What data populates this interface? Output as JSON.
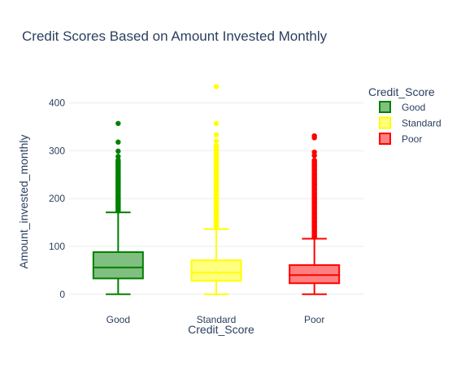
{
  "chart_data": {
    "type": "box",
    "title": "Credit Scores Based on Amount Invested Monthly",
    "xlabel": "Credit_Score",
    "ylabel": "Amount_invested_monthly",
    "ylim": [
      -14,
      445
    ],
    "yticks": [
      0,
      100,
      200,
      300,
      400
    ],
    "grid": true,
    "legend": {
      "title": "Credit_Score",
      "position": "top-right"
    },
    "categories": [
      "Good",
      "Standard",
      "Poor"
    ],
    "series": [
      {
        "name": "Good",
        "color": "#008000",
        "fill": "#80bf80",
        "min": 0,
        "q1": 33,
        "median": 56,
        "q3": 88,
        "upper_fence": 171,
        "outliers": [
          357,
          318,
          299,
          288,
          280,
          272,
          265,
          258,
          252,
          246,
          240,
          234,
          228,
          222,
          216,
          210,
          204,
          198,
          192,
          186,
          180,
          175
        ]
      },
      {
        "name": "Standard",
        "color": "#ffff00",
        "fill": "#ffff80",
        "min": 0,
        "q1": 28,
        "median": 45,
        "q3": 71,
        "upper_fence": 136,
        "outliers": [
          434,
          357,
          333,
          320,
          310,
          300,
          290,
          280,
          270,
          260,
          250,
          240,
          230,
          220,
          210,
          200,
          190,
          180,
          170,
          160,
          150,
          140
        ]
      },
      {
        "name": "Poor",
        "color": "#ff0000",
        "fill": "#ff8080",
        "min": 0,
        "q1": 23,
        "median": 40,
        "q3": 61,
        "upper_fence": 116,
        "outliers": [
          331,
          327,
          297,
          290,
          280,
          270,
          260,
          250,
          240,
          230,
          220,
          210,
          200,
          190,
          180,
          170,
          160,
          150,
          140,
          130,
          120
        ]
      }
    ]
  }
}
